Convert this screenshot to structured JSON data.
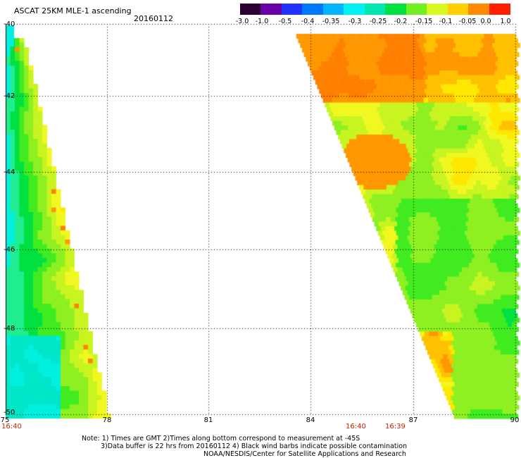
{
  "header": {
    "title": "ASCAT 25KM MLE-1 ascending",
    "date": "20160112"
  },
  "colorbar": {
    "labels": [
      "-3.0",
      "-1.0",
      "-0.5",
      "-0.4",
      "-0.35",
      "-0.3",
      "-0.25",
      "-0.2",
      "-0.15",
      "-0.1",
      "-0.05",
      "0.0",
      "1.0"
    ],
    "colors": [
      "#2a0030",
      "#6a00a8",
      "#2233ff",
      "#0077ff",
      "#00b4ff",
      "#00f2f0",
      "#00e6b0",
      "#00e040",
      "#70f020",
      "#d8f820",
      "#ffd000",
      "#ff8a00",
      "#ff2000"
    ]
  },
  "axes": {
    "lat_labels": [
      "-40",
      "-42",
      "-44",
      "-46",
      "-48",
      "-50"
    ],
    "lon_labels": [
      "75",
      "78",
      "81",
      "84",
      "87",
      "90"
    ]
  },
  "times": {
    "left": "16:40",
    "mid1": "16:40",
    "mid2": "16:39"
  },
  "notes": {
    "line1": "Note: 1) Times are GMT 2)Times along bottom correspond to measurement at -45S",
    "line2": "3)Data buffer is 22 hrs from 20160112 4) Black wind barbs indicate possible contamination",
    "line3": "NOAA/NESDIS/Center for Satellite Applications and Research"
  }
}
